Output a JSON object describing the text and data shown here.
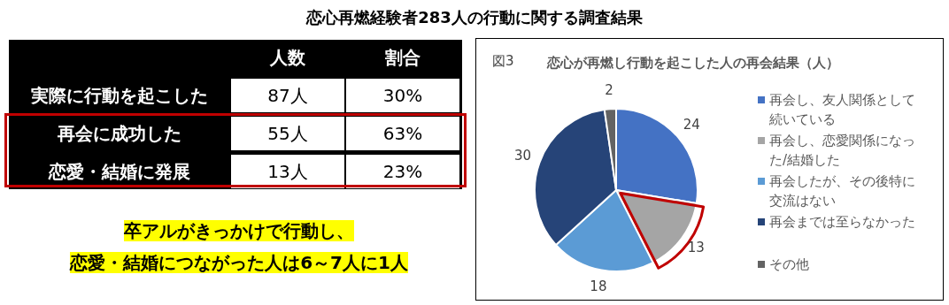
{
  "chart_data": [
    {
      "type": "other",
      "title": "恋心再燃経験者283人の行動に関する調査結果",
      "categories": [
        "実際に行動を起こした",
        "再会に成功した",
        "恋愛・結婚に発展"
      ],
      "series": [
        {
          "name": "人数",
          "values": [
            87,
            55,
            13
          ],
          "value_labels": [
            "87人",
            "55人",
            "13人"
          ]
        },
        {
          "name": "割合",
          "values": [
            30,
            63,
            23
          ],
          "value_labels": [
            "30%",
            "63%",
            "23%"
          ]
        }
      ],
      "annotations": [
        "卒アルがきっかけで行動し、",
        "恋愛・結婚につながった人は6～7人に1人"
      ]
    },
    {
      "type": "pie",
      "title": "恋心が再燃し行動を起こした人の再会結果（人）",
      "annotations": [
        "図3"
      ],
      "categories": [
        "再会し、友人関係として続いている",
        "再会し、恋愛関係になった/結婚した",
        "再会したが、その後特に交流はない",
        "再会までは至らなかった",
        "その他"
      ],
      "values": [
        24,
        13,
        18,
        30,
        2
      ],
      "colors": [
        "#4472c4",
        "#a5a5a5",
        "#5b9bd5",
        "#264478",
        "#636363"
      ],
      "data_labels": true,
      "legend": "right"
    }
  ]
}
